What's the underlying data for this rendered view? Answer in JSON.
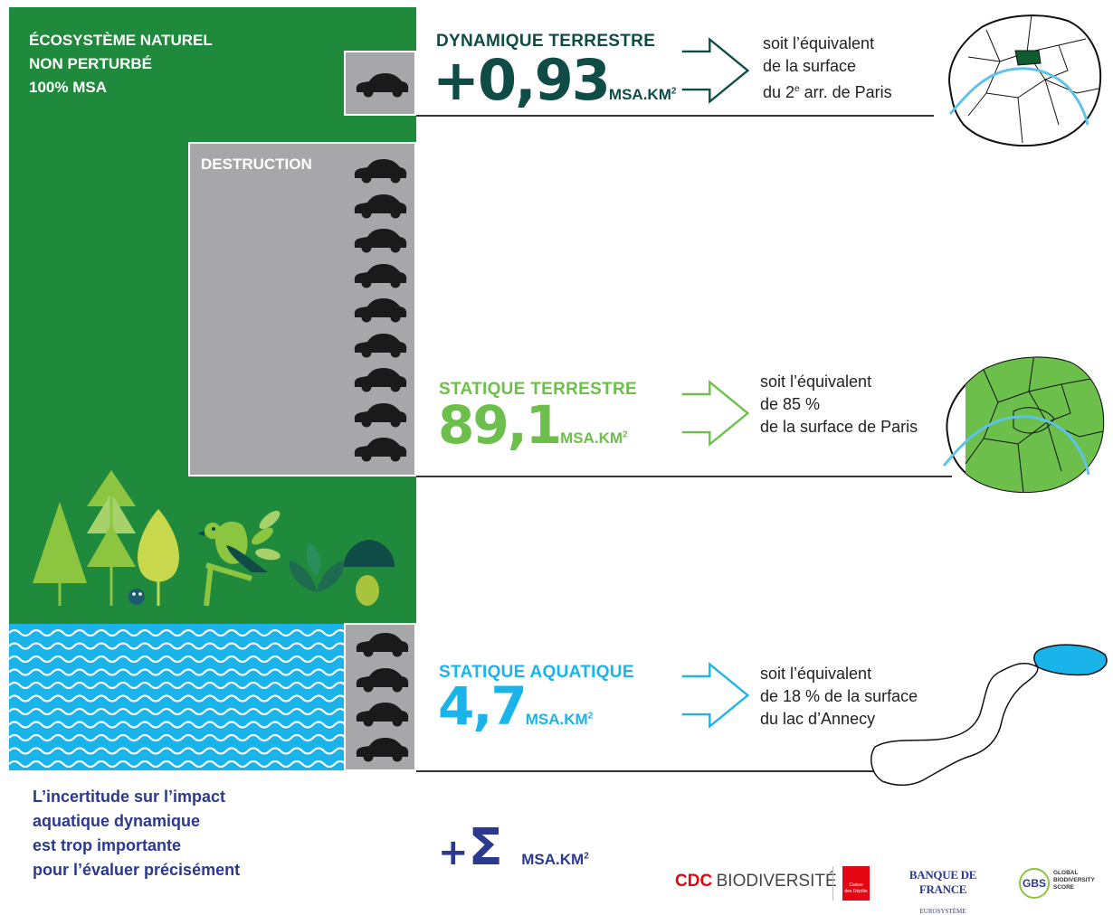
{
  "ecosystem": {
    "line1": "ÉCOSYSTÈME NATUREL",
    "line2": "NON PERTURBÉ",
    "line3": "100% MSA"
  },
  "destruction_label": "DESTRUCTION",
  "dynamic_terrestrial": {
    "title": "DYNAMIQUE TERRESTRE",
    "value": "+0,93",
    "unit": "MSA.KM",
    "unit_sup": "2",
    "eq_line1": "soit l’équivalent",
    "eq_line2": "de la surface",
    "eq_line3a": "du 2",
    "eq_line3_sup": "e",
    "eq_line3b": " arr. de Paris",
    "color": "#0f4c45"
  },
  "static_terrestrial": {
    "title": "STATIQUE TERRESTRE",
    "value": "89,1",
    "unit": "MSA.KM",
    "unit_sup": "2",
    "eq_line1": "soit l’équivalent",
    "eq_line2": "de 85 %",
    "eq_line3": "de la surface de Paris",
    "color": "#6cbf4a"
  },
  "static_aquatic": {
    "title": "STATIQUE AQUATIQUE",
    "value": "4,7",
    "unit": "MSA.KM",
    "unit_sup": "2",
    "eq_line1": "soit l’équivalent",
    "eq_line2": "de 18 % de la surface",
    "eq_line3": "du lac d’Annecy",
    "color": "#1ab3ea"
  },
  "uncertainty": {
    "line1": "L’incertitude sur l’impact",
    "line2": "aquatique dynamique",
    "line3": "est trop importante",
    "line4": "pour l’évaluer précisément"
  },
  "sigma": {
    "plus": "+",
    "symbol": "Σ",
    "unit": "MSA.KM",
    "unit_sup": "2",
    "color": "#2b3990"
  },
  "logos": {
    "cdc_a": "CDC",
    "cdc_b": "BIODIVERSITÉ",
    "caisse_line1": "Caisse",
    "caisse_line2": "des Dépôts",
    "bdf": "BANQUE DE FRANCE",
    "bdf_sub": "EUROSYSTÈME",
    "gbs": "GBS",
    "gbs_line1": "GLOBAL",
    "gbs_line2": "BIODIVERSITY",
    "gbs_line3": "SCORE"
  },
  "colors": {
    "forest_green": "#1f8a3c",
    "gray": "#a7a7a9",
    "water": "#1ab3ea",
    "dark_teal": "#0f4c45",
    "navy": "#2b3990"
  }
}
